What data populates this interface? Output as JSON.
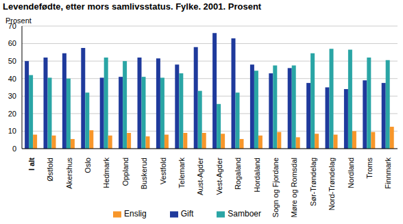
{
  "chart_data": {
    "type": "bar",
    "title": "Levendefødte, etter mors samlivsstatus. Fylke. 2001. Prosent",
    "y_label": "Prosent",
    "categories": [
      "I alt",
      "Østfold",
      "Akershus",
      "Oslo",
      "Hedmark",
      "Oppland",
      "Buskerud",
      "Vestfold",
      "Telemark",
      "Aust-Agder",
      "Vest-Agder",
      "Rogaland",
      "Hordaland",
      "Sogn og Fjordane",
      "Møre og Romsdal",
      "Sør-Trøndelag",
      "Nord-Trøndelag",
      "Nordland",
      "Troms",
      "Finnmark"
    ],
    "series": [
      {
        "name": "Gift",
        "color": "#1f3a9c",
        "values": [
          50,
          52,
          54.5,
          57.5,
          40.5,
          41,
          52,
          51.5,
          48,
          58,
          66,
          63,
          48,
          43,
          46,
          37.5,
          35,
          34,
          39,
          37.5
        ]
      },
      {
        "name": "Samboer",
        "color": "#2aa5a5",
        "values": [
          42,
          40.5,
          40,
          32,
          52,
          50,
          41,
          40.5,
          43,
          33,
          25.5,
          32,
          44.5,
          47.5,
          47.5,
          54.5,
          57,
          56.5,
          52,
          50.5
        ]
      },
      {
        "name": "Enslig",
        "color": "#f7962a",
        "values": [
          8,
          7.5,
          5.5,
          10.5,
          7.5,
          9,
          7,
          8,
          9,
          9,
          8.5,
          5.5,
          7.5,
          9.5,
          6.5,
          8.5,
          8,
          10,
          9.5,
          12.5
        ]
      }
    ],
    "ylim": [
      0,
      70
    ],
    "yticks": [
      0,
      10,
      20,
      30,
      40,
      50,
      60,
      70
    ],
    "grid": true,
    "legend": "bottom"
  }
}
